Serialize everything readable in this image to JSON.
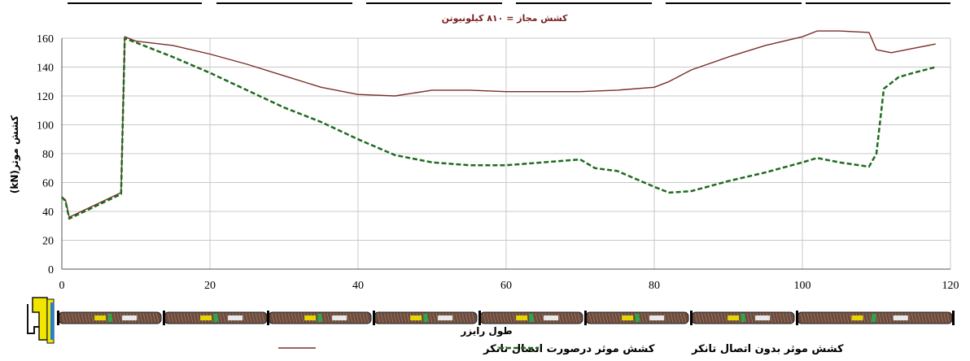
{
  "chart_data": {
    "type": "line",
    "subtitle": "کشش مجاز = ۸۱۰ کیلونیوتن",
    "xlabel": "طول رایزر",
    "ylabel": "کشش موثر(kN)",
    "xlim": [
      0,
      120
    ],
    "ylim": [
      0,
      160
    ],
    "x_ticks": [
      0,
      20,
      40,
      60,
      80,
      100,
      120
    ],
    "y_ticks": [
      0,
      20,
      40,
      60,
      80,
      100,
      120,
      140,
      160
    ],
    "grid": true,
    "legend_position": "bottom",
    "series": [
      {
        "name": "کشش موثر درصورت اتصال تانکر",
        "color": "#7a2e28",
        "dash": "solid",
        "points": [
          [
            0,
            50
          ],
          [
            0.5,
            48
          ],
          [
            1,
            36
          ],
          [
            8,
            53
          ],
          [
            8.5,
            161
          ],
          [
            10,
            158
          ],
          [
            15,
            155
          ],
          [
            20,
            149
          ],
          [
            25,
            142
          ],
          [
            30,
            134
          ],
          [
            35,
            126
          ],
          [
            40,
            121
          ],
          [
            45,
            120
          ],
          [
            50,
            124
          ],
          [
            55,
            124
          ],
          [
            60,
            123
          ],
          [
            65,
            123
          ],
          [
            70,
            123
          ],
          [
            75,
            124
          ],
          [
            80,
            126
          ],
          [
            82,
            130
          ],
          [
            85,
            138
          ],
          [
            90,
            147
          ],
          [
            95,
            155
          ],
          [
            100,
            161
          ],
          [
            102,
            165
          ],
          [
            105,
            165
          ],
          [
            109,
            164
          ],
          [
            110,
            152
          ],
          [
            112,
            150
          ],
          [
            115,
            153
          ],
          [
            118,
            156
          ]
        ]
      },
      {
        "name": "کشش موثر بدون اتصال تانکر",
        "color": "#1f6b1f",
        "dash": "dashed",
        "points": [
          [
            0,
            50
          ],
          [
            0.5,
            47
          ],
          [
            1,
            35
          ],
          [
            8,
            52
          ],
          [
            8.5,
            160
          ],
          [
            10,
            157
          ],
          [
            15,
            147
          ],
          [
            20,
            136
          ],
          [
            25,
            124
          ],
          [
            30,
            112
          ],
          [
            35,
            102
          ],
          [
            40,
            90
          ],
          [
            45,
            79
          ],
          [
            50,
            74
          ],
          [
            55,
            72
          ],
          [
            60,
            72
          ],
          [
            65,
            74
          ],
          [
            70,
            76
          ],
          [
            72,
            70
          ],
          [
            75,
            68
          ],
          [
            80,
            57
          ],
          [
            82,
            53
          ],
          [
            85,
            54
          ],
          [
            90,
            61
          ],
          [
            95,
            67
          ],
          [
            100,
            74
          ],
          [
            102,
            77
          ],
          [
            105,
            74
          ],
          [
            109,
            71
          ],
          [
            110,
            80
          ],
          [
            111,
            125
          ],
          [
            113,
            133
          ],
          [
            115,
            136
          ],
          [
            118,
            140
          ]
        ]
      }
    ]
  }
}
